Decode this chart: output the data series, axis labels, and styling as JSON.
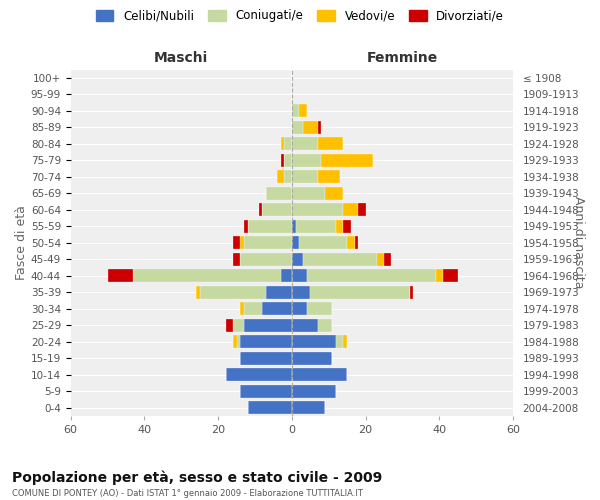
{
  "age_groups": [
    "0-4",
    "5-9",
    "10-14",
    "15-19",
    "20-24",
    "25-29",
    "30-34",
    "35-39",
    "40-44",
    "45-49",
    "50-54",
    "55-59",
    "60-64",
    "65-69",
    "70-74",
    "75-79",
    "80-84",
    "85-89",
    "90-94",
    "95-99",
    "100+"
  ],
  "birth_years": [
    "2004-2008",
    "1999-2003",
    "1994-1998",
    "1989-1993",
    "1984-1988",
    "1979-1983",
    "1974-1978",
    "1969-1973",
    "1964-1968",
    "1959-1963",
    "1954-1958",
    "1949-1953",
    "1944-1948",
    "1939-1943",
    "1934-1938",
    "1929-1933",
    "1924-1928",
    "1919-1923",
    "1914-1918",
    "1909-1913",
    "≤ 1908"
  ],
  "maschi": {
    "celibi": [
      12,
      14,
      18,
      14,
      14,
      13,
      8,
      7,
      3,
      0,
      0,
      0,
      0,
      0,
      0,
      0,
      0,
      0,
      0,
      0,
      0
    ],
    "coniugati": [
      0,
      0,
      0,
      0,
      1,
      3,
      5,
      18,
      40,
      14,
      13,
      12,
      8,
      7,
      2,
      2,
      2,
      0,
      0,
      0,
      0
    ],
    "vedovi": [
      0,
      0,
      0,
      0,
      1,
      0,
      1,
      1,
      0,
      0,
      1,
      0,
      0,
      0,
      2,
      0,
      1,
      0,
      0,
      0,
      0
    ],
    "divorziati": [
      0,
      0,
      0,
      0,
      0,
      2,
      0,
      0,
      7,
      2,
      2,
      1,
      1,
      0,
      0,
      1,
      0,
      0,
      0,
      0,
      0
    ]
  },
  "femmine": {
    "celibi": [
      9,
      12,
      15,
      11,
      12,
      7,
      4,
      5,
      4,
      3,
      2,
      1,
      0,
      0,
      0,
      0,
      0,
      0,
      0,
      0,
      0
    ],
    "coniugati": [
      0,
      0,
      0,
      0,
      2,
      4,
      7,
      27,
      35,
      20,
      13,
      11,
      14,
      9,
      7,
      8,
      7,
      3,
      2,
      0,
      0
    ],
    "vedovi": [
      0,
      0,
      0,
      0,
      1,
      0,
      0,
      0,
      2,
      2,
      2,
      2,
      4,
      5,
      6,
      14,
      7,
      4,
      2,
      0,
      0
    ],
    "divorziati": [
      0,
      0,
      0,
      0,
      0,
      0,
      0,
      1,
      4,
      2,
      1,
      2,
      2,
      0,
      0,
      0,
      0,
      1,
      0,
      0,
      0
    ]
  },
  "colors": {
    "celibi": "#4472c4",
    "coniugati": "#c5d9a0",
    "vedovi": "#ffc000",
    "divorziati": "#cc0000"
  },
  "xlim": 60,
  "title": "Popolazione per età, sesso e stato civile - 2009",
  "subtitle": "COMUNE DI PONTEY (AO) - Dati ISTAT 1° gennaio 2009 - Elaborazione TUTTITALIA.IT",
  "ylabel_left": "Fasce di età",
  "ylabel_right": "Anni di nascita",
  "xlabel_left": "Maschi",
  "xlabel_right": "Femmine",
  "legend_labels": [
    "Celibi/Nubili",
    "Coniugati/e",
    "Vedovi/e",
    "Divorziati/e"
  ],
  "bg_color": "#ffffff",
  "plot_bg_color": "#efefef"
}
